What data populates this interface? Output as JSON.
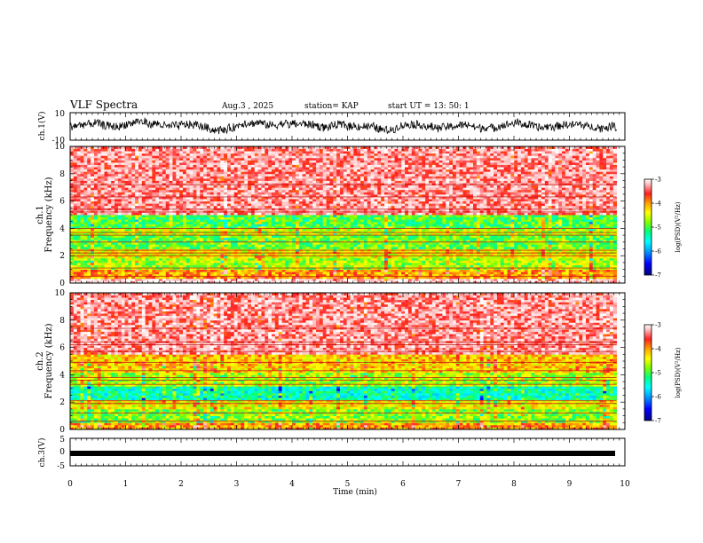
{
  "header": {
    "title": "VLF Spectra",
    "date": "Aug.3 , 2025",
    "station": "station= KAP",
    "start": "start UT = 13: 50: 1"
  },
  "colors": {
    "colormap": [
      "#000080",
      "#0000ff",
      "#00a0ff",
      "#00ffff",
      "#00ff80",
      "#80ff00",
      "#ffff00",
      "#ffa000",
      "#ff2020",
      "#ffc0c0",
      "#ffffff"
    ],
    "trace": "#000000"
  },
  "chart_data": [
    {
      "type": "line",
      "name": "ch1-waveform",
      "ylabel": "ch.1(V)",
      "ylim": [
        -10,
        10
      ],
      "y_ticks": [
        "10",
        "-10"
      ],
      "xlim": [
        0,
        10
      ],
      "description_values": "noisy waveform oscillating roughly between -5 and +5 V"
    },
    {
      "type": "heatmap",
      "name": "ch1-spectrogram",
      "ylabel": "ch.1\nFrequency (kHz)",
      "ylabel_lines": [
        "ch.1",
        "Frequency (kHz)"
      ],
      "ylim": [
        0,
        10
      ],
      "y_ticks": [
        "0",
        "2",
        "4",
        "6",
        "8",
        "10"
      ],
      "xlim": [
        0,
        9.85
      ],
      "zlim": [
        -7,
        -3
      ],
      "colorbar_label": "log(PSD)(V²/Hz)",
      "colorbar_ticks": [
        "-3",
        "-4",
        "-5",
        "-6",
        "-7"
      ],
      "bands": [
        {
          "fmin": 0,
          "fmax": 0.4,
          "level": -3.2
        },
        {
          "fmin": 0.4,
          "fmax": 1.0,
          "level": -4.2
        },
        {
          "fmin": 1.0,
          "fmax": 1.8,
          "level": -4.9
        },
        {
          "fmin": 1.8,
          "fmax": 2.5,
          "level": -4.6
        },
        {
          "fmin": 2.5,
          "fmax": 3.5,
          "level": -5.1
        },
        {
          "fmin": 3.5,
          "fmax": 4.0,
          "level": -4.8
        },
        {
          "fmin": 4.0,
          "fmax": 5.0,
          "level": -5.2
        },
        {
          "fmin": 5.0,
          "fmax": 10.0,
          "level": -3.5
        }
      ],
      "lines_khz": [
        0.5,
        1.1,
        2.0,
        2.2,
        2.4,
        3.0,
        3.5,
        3.7,
        4.0,
        5.2,
        5.4,
        6.3,
        7.2
      ]
    },
    {
      "type": "heatmap",
      "name": "ch2-spectrogram",
      "ylabel": "ch.2\nFrequency (kHz)",
      "ylabel_lines": [
        "ch.2",
        "Frequency (kHz)"
      ],
      "ylim": [
        0,
        10
      ],
      "y_ticks": [
        "0",
        "2",
        "4",
        "6",
        "8",
        "10"
      ],
      "xlim": [
        0,
        9.85
      ],
      "zlim": [
        -7,
        -3
      ],
      "colorbar_label": "log(PSD)(V²/Hz)",
      "colorbar_ticks": [
        "-3",
        "-4",
        "-5",
        "-6",
        "-7"
      ],
      "bands": [
        {
          "fmin": 0,
          "fmax": 0.5,
          "level": -4.2
        },
        {
          "fmin": 0.5,
          "fmax": 1.5,
          "level": -5.0
        },
        {
          "fmin": 1.5,
          "fmax": 2.2,
          "level": -4.6
        },
        {
          "fmin": 2.2,
          "fmax": 3.2,
          "level": -5.6
        },
        {
          "fmin": 3.2,
          "fmax": 4.2,
          "level": -4.9
        },
        {
          "fmin": 4.2,
          "fmax": 5.5,
          "level": -4.4
        },
        {
          "fmin": 5.5,
          "fmax": 10.0,
          "level": -3.5
        }
      ],
      "lines_khz": [
        0.6,
        1.2,
        1.9,
        2.1,
        3.3,
        3.6,
        3.8,
        4.3,
        4.9,
        5.7,
        6.2,
        6.4,
        7.4
      ]
    },
    {
      "type": "line",
      "name": "ch3-signal",
      "ylabel": "ch.3(V)",
      "ylim": [
        -5,
        5
      ],
      "y_ticks": [
        "5",
        "0",
        "-5"
      ],
      "xlim": [
        0,
        10
      ],
      "description_values": "constant thick band near -1 V"
    }
  ],
  "x_axis": {
    "label": "Time (min)",
    "ticks": [
      "0",
      "1",
      "2",
      "3",
      "4",
      "5",
      "6",
      "7",
      "8",
      "9",
      "10"
    ],
    "xlim": [
      0,
      10
    ]
  }
}
